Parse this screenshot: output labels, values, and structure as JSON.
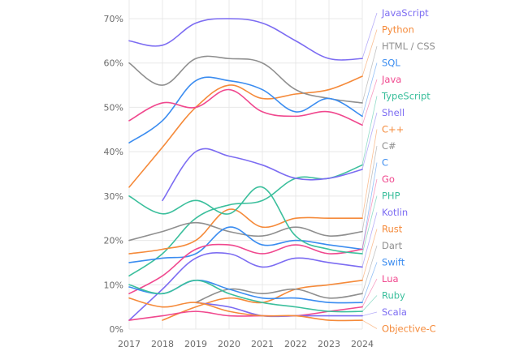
{
  "chart_data": {
    "type": "line",
    "title": "",
    "xlabel": "",
    "ylabel": "",
    "x": [
      "2017",
      "2018",
      "2019",
      "2020",
      "2021",
      "2022",
      "2023",
      "2024"
    ],
    "ylim": [
      0,
      70
    ],
    "yticks": [
      "0%",
      "10%",
      "20%",
      "30%",
      "40%",
      "50%",
      "60%",
      "70%"
    ],
    "grid": true,
    "legend_placement": "right",
    "series": [
      {
        "name": "JavaScript",
        "color": "#7c6cf2",
        "values": [
          65,
          64,
          69,
          70,
          69,
          65,
          61,
          61
        ]
      },
      {
        "name": "Python",
        "color": "#f58a3a",
        "values": [
          32,
          41,
          50,
          55,
          52,
          53,
          54,
          57
        ]
      },
      {
        "name": "HTML / CSS",
        "color": "#8f8f8f",
        "values": [
          60,
          55,
          61,
          61,
          60,
          54,
          52,
          51
        ]
      },
      {
        "name": "SQL",
        "color": "#3a8cf0",
        "values": [
          42,
          47,
          56,
          56,
          54,
          49,
          52,
          48
        ]
      },
      {
        "name": "Java",
        "color": "#f0488e",
        "values": [
          47,
          51,
          50,
          54,
          49,
          48,
          49,
          46
        ]
      },
      {
        "name": "TypeScript",
        "color": "#3bbf9c",
        "values": [
          12,
          17,
          25,
          28,
          29,
          34,
          34,
          37
        ]
      },
      {
        "name": "Shell",
        "color": "#7c6cf2",
        "values": [
          null,
          29,
          40,
          39,
          37,
          34,
          34,
          36
        ]
      },
      {
        "name": "C++",
        "color": "#f58a3a",
        "values": [
          17,
          18,
          20,
          27,
          23,
          25,
          25,
          25
        ]
      },
      {
        "name": "C#",
        "color": "#8f8f8f",
        "values": [
          20,
          22,
          24,
          22,
          21,
          23,
          21,
          22
        ]
      },
      {
        "name": "C",
        "color": "#3a8cf0",
        "values": [
          15,
          16,
          17,
          23,
          19,
          20,
          19,
          18
        ]
      },
      {
        "name": "Go",
        "color": "#f0488e",
        "values": [
          8,
          12,
          18,
          19,
          17,
          19,
          17,
          18
        ]
      },
      {
        "name": "PHP",
        "color": "#3bbf9c",
        "values": [
          30,
          26,
          29,
          26,
          32,
          21,
          18,
          17
        ]
      },
      {
        "name": "Kotlin",
        "color": "#7c6cf2",
        "values": [
          2,
          9,
          16,
          17,
          14,
          16,
          15,
          14
        ]
      },
      {
        "name": "Rust",
        "color": "#f58a3a",
        "values": [
          null,
          2,
          5,
          7,
          6,
          9,
          10,
          11
        ]
      },
      {
        "name": "Dart",
        "color": "#8f8f8f",
        "values": [
          null,
          null,
          6,
          9,
          8,
          9,
          7,
          8
        ]
      },
      {
        "name": "Swift",
        "color": "#3a8cf0",
        "values": [
          9.5,
          8,
          11,
          9,
          7,
          7,
          6,
          6
        ]
      },
      {
        "name": "Lua",
        "color": "#f0488e",
        "values": [
          2,
          3,
          4,
          3,
          3,
          3,
          4,
          5
        ]
      },
      {
        "name": "Ruby",
        "color": "#3bbf9c",
        "values": [
          10,
          8,
          11,
          8,
          6,
          5,
          4,
          4
        ]
      },
      {
        "name": "Scala",
        "color": "#7c6cf2",
        "values": [
          null,
          null,
          6,
          5,
          3,
          3,
          3,
          3
        ]
      },
      {
        "name": "Objective-C",
        "color": "#f58a3a",
        "values": [
          7,
          5,
          6,
          4,
          3,
          3,
          2,
          2
        ]
      }
    ]
  }
}
